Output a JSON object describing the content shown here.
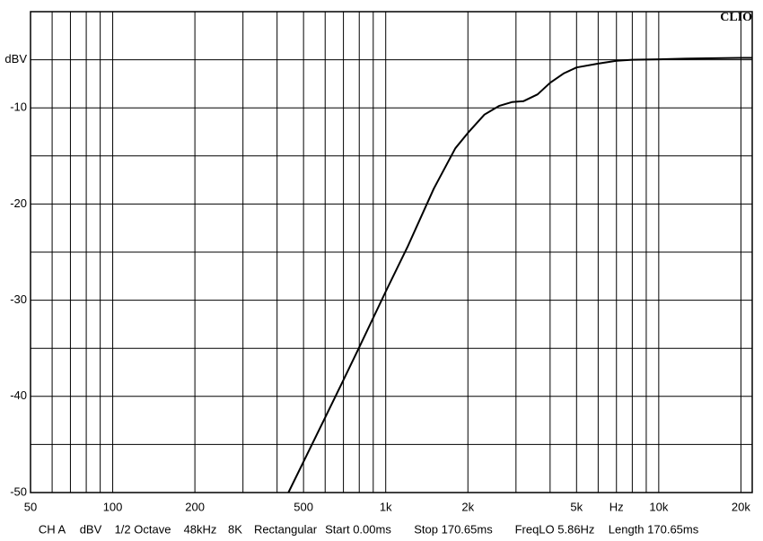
{
  "chart_data": {
    "type": "line",
    "brand": "CLIO",
    "xscale": "log",
    "xlim": [
      50,
      22000
    ],
    "ylim": [
      -50,
      0
    ],
    "xticks": [
      50,
      100,
      200,
      500,
      {
        "value": 1000,
        "label": "1k"
      },
      {
        "value": 2000,
        "label": "2k"
      },
      {
        "value": 5000,
        "label": "5k"
      },
      {
        "value": 7000,
        "label": "Hz"
      },
      {
        "value": 10000,
        "label": "10k"
      },
      {
        "value": 20000,
        "label": "20k"
      }
    ],
    "xminor": [
      60,
      70,
      80,
      90,
      300,
      400,
      600,
      700,
      800,
      900,
      3000,
      4000,
      6000,
      8000,
      9000
    ],
    "yticks": [
      {
        "value": -5,
        "label": "dBV"
      },
      -10,
      -20,
      -30,
      -40,
      -50
    ],
    "yminor": [
      -15,
      -25,
      -35,
      -45
    ],
    "grid": true,
    "x": [
      440,
      500,
      600,
      700,
      800,
      1000,
      1200,
      1500,
      1800,
      2000,
      2300,
      2600,
      2900,
      3200,
      3600,
      4000,
      4500,
      5000,
      6000,
      7000,
      8000,
      10000,
      12000,
      15000,
      20000,
      22000
    ],
    "series": [
      {
        "color": "#000000",
        "values": [
          -50,
          -46.8,
          -42.2,
          -38.3,
          -34.9,
          -29.1,
          -24.5,
          -18.4,
          -14.2,
          -12.6,
          -10.7,
          -9.8,
          -9.4,
          -9.3,
          -8.6,
          -7.4,
          -6.4,
          -5.8,
          -5.4,
          -5.1,
          -5.0,
          -4.95,
          -4.9,
          -4.85,
          -4.8,
          -4.8
        ]
      }
    ],
    "footer": [
      "CH A",
      "dBV",
      "1/2 Octave",
      "48kHz",
      "8K",
      "Rectangular",
      "Start 0.00ms",
      "Stop 170.65ms",
      "FreqLO 5.86Hz",
      "Length 170.65ms"
    ]
  }
}
